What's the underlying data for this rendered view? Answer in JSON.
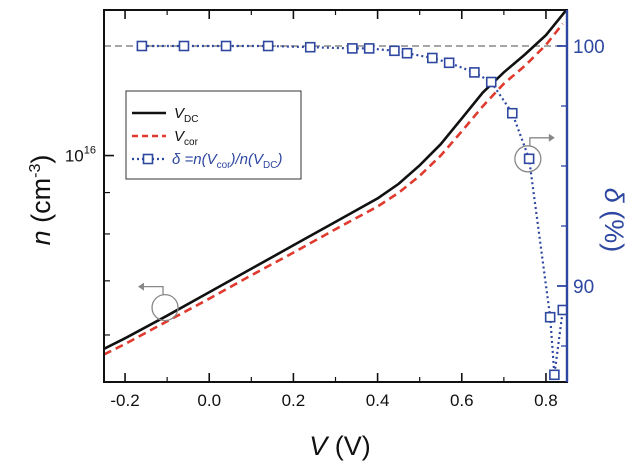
{
  "chart_data": {
    "type": "line",
    "xlabel": {
      "var": "V",
      "unit": " (V)"
    },
    "ylabel_left": {
      "var": "n",
      "unit_prefix": " (cm",
      "unit_sup": "-3",
      "unit_suffix": ")"
    },
    "ylabel_right": {
      "var": "δ",
      "unit": " (%)"
    },
    "xlim": [
      -0.25,
      0.85
    ],
    "ylim_left_log10": [
      15.72,
      16.18
    ],
    "ylim_right": [
      86.0,
      101.5
    ],
    "x_ticks": [
      -0.2,
      0.0,
      0.2,
      0.4,
      0.6,
      0.8
    ],
    "x_tick_labels": [
      "-0.2",
      "0.0",
      "0.2",
      "0.4",
      "0.6",
      "0.8"
    ],
    "y_left_tick": {
      "base": "10",
      "exp": "16",
      "value_log10": 16.0
    },
    "y_right_ticks": [
      90,
      100
    ],
    "y_right_tick_labels": [
      "90",
      "100"
    ],
    "reference_line": {
      "axis": "right",
      "value": 100,
      "color": "#888888"
    },
    "series": [
      {
        "name": "V_DC",
        "label": {
          "main": "V",
          "sub": "DC"
        },
        "axis": "left",
        "color": "#111111",
        "style": "solid",
        "x": [
          -0.25,
          -0.2,
          -0.1,
          0.0,
          0.1,
          0.2,
          0.3,
          0.4,
          0.45,
          0.5,
          0.55,
          0.6,
          0.65,
          0.7,
          0.75,
          0.8,
          0.85
        ],
        "y_log10": [
          15.761,
          15.774,
          15.802,
          15.831,
          15.86,
          15.889,
          15.918,
          15.947,
          15.965,
          15.988,
          16.014,
          16.046,
          16.078,
          16.103,
          16.125,
          16.149,
          16.181
        ]
      },
      {
        "name": "V_cor",
        "label": {
          "main": "V",
          "sub": "cor"
        },
        "axis": "left",
        "color": "#e03a2f",
        "style": "dashed",
        "x": [
          -0.25,
          -0.2,
          -0.1,
          0.0,
          0.1,
          0.2,
          0.3,
          0.4,
          0.45,
          0.5,
          0.55,
          0.6,
          0.65,
          0.7,
          0.75,
          0.8,
          0.84
        ],
        "y_log10": [
          15.754,
          15.767,
          15.795,
          15.823,
          15.852,
          15.88,
          15.909,
          15.937,
          15.954,
          15.975,
          16.0,
          16.03,
          16.061,
          16.089,
          16.111,
          16.137,
          16.163
        ]
      },
      {
        "name": "δ",
        "label": {
          "prefix": "δ =n(V",
          "sub1": "cor",
          "mid": ")/n(V",
          "sub2": "DC",
          "suffix": ")"
        },
        "axis": "right",
        "color": "#2e47a0",
        "style": "dotted-square",
        "x": [
          -0.16,
          -0.06,
          0.04,
          0.14,
          0.24,
          0.34,
          0.38,
          0.44,
          0.47,
          0.53,
          0.57,
          0.63,
          0.67,
          0.72,
          0.76,
          0.81,
          0.82,
          0.84
        ],
        "y": [
          100.0,
          100.0,
          100.0,
          100.0,
          99.95,
          99.9,
          99.9,
          99.8,
          99.7,
          99.5,
          99.3,
          98.9,
          98.5,
          97.2,
          95.3,
          88.7,
          86.3,
          89.0
        ]
      }
    ],
    "annotations": [
      {
        "type": "circle-arrow",
        "target_axis": "right",
        "x": 0.757,
        "y": 95.3,
        "direction": "right"
      },
      {
        "type": "circle-arrow",
        "target_axis": "left",
        "x": -0.105,
        "y_log10": 15.812,
        "direction": "left"
      }
    ]
  }
}
